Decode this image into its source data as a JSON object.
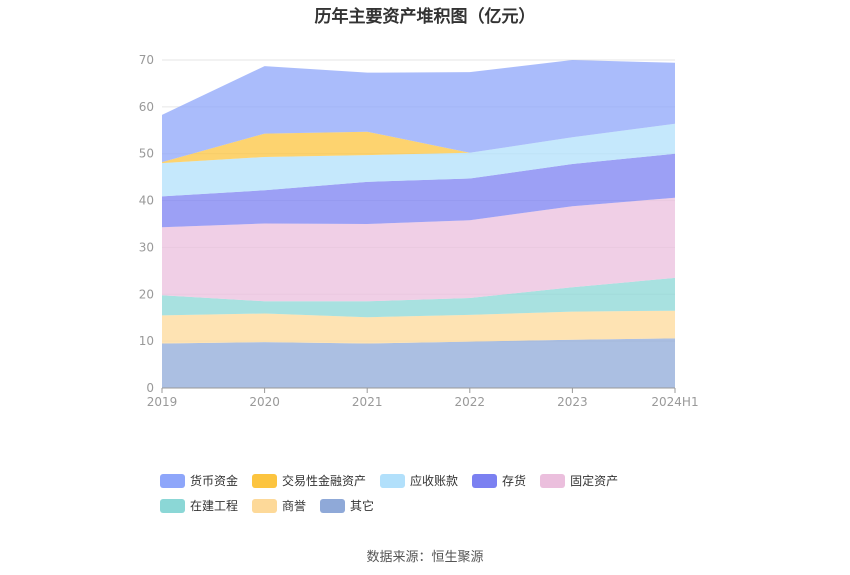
{
  "chart_data": {
    "type": "area",
    "stacked": true,
    "title": "历年主要资产堆积图（亿元）",
    "categories": [
      "2019",
      "2020",
      "2021",
      "2022",
      "2023",
      "2024H1"
    ],
    "ylim": [
      0,
      70
    ],
    "yticks": [
      0,
      10,
      20,
      30,
      40,
      50,
      60,
      70
    ],
    "grid": true,
    "legend_position": "bottom",
    "series": [
      {
        "name": "其它",
        "color": "#8fa9d8",
        "values": [
          9.5,
          9.8,
          9.5,
          9.9,
          10.3,
          10.6
        ]
      },
      {
        "name": "商誉",
        "color": "#fdd999",
        "values": [
          6.0,
          6.1,
          5.6,
          5.7,
          6.0,
          5.9
        ]
      },
      {
        "name": "在建工程",
        "color": "#8bd7d6",
        "values": [
          4.3,
          2.6,
          3.4,
          3.6,
          5.2,
          7.0
        ]
      },
      {
        "name": "固定资产",
        "color": "#ebbfdd",
        "values": [
          14.5,
          16.6,
          16.5,
          16.6,
          17.3,
          17.1
        ]
      },
      {
        "name": "存货",
        "color": "#7b80f1",
        "values": [
          6.6,
          7.1,
          9.0,
          8.9,
          9.0,
          9.4
        ]
      },
      {
        "name": "应收账款",
        "color": "#b2e0fb",
        "values": [
          7.1,
          7.1,
          5.7,
          5.5,
          5.7,
          6.4
        ]
      },
      {
        "name": "交易性金融资产",
        "color": "#fcc43f",
        "values": [
          0.2,
          5.0,
          5.0,
          0,
          0,
          0
        ]
      },
      {
        "name": "货币资金",
        "color": "#8ea6fa",
        "values": [
          10.1,
          14.4,
          12.6,
          17.2,
          16.5,
          13.0
        ]
      }
    ]
  },
  "legend_order": [
    "货币资金",
    "交易性金融资产",
    "应收账款",
    "存货",
    "固定资产",
    "在建工程",
    "商誉",
    "其它"
  ],
  "source_text": "数据来源：恒生聚源"
}
